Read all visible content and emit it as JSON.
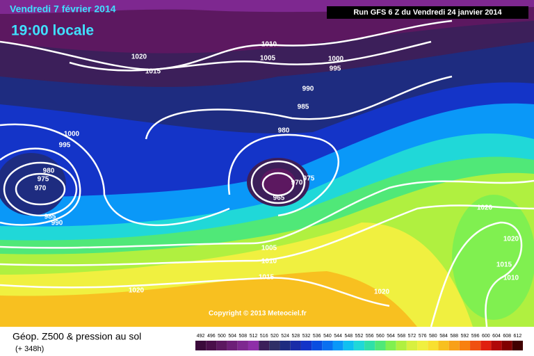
{
  "header": {
    "date": "Vendredi 7 février 2014",
    "time": "19:00 locale",
    "run": "Run GFS 6 Z du Vendredi 24 janvier 2014"
  },
  "isobar_labels": [
    "1020",
    "1015",
    "1010",
    "1005",
    "1000",
    "995",
    "990",
    "985",
    "980",
    "975",
    "970",
    "965",
    "1000",
    "995",
    "980",
    "975",
    "970",
    "985",
    "990",
    "1005",
    "1010",
    "1015",
    "1020",
    "1020",
    "1020",
    "1020",
    "1015",
    "1010"
  ],
  "copyright": "Copyright © 2013 Meteociel.fr",
  "footer": {
    "title": "Géop. Z500 & pression au sol",
    "lead": "(+ 348h)"
  },
  "scale": {
    "values": [
      492,
      496,
      500,
      504,
      508,
      512,
      516,
      520,
      524,
      528,
      532,
      536,
      540,
      544,
      548,
      552,
      556,
      560,
      564,
      568,
      572,
      576,
      580,
      584,
      588,
      592,
      596,
      600,
      604,
      608,
      612
    ],
    "colors": [
      "#3a0a3a",
      "#4a0f4a",
      "#5c1860",
      "#6d1f78",
      "#7e2890",
      "#8e2fa8",
      "#3c1f5a",
      "#2f2f66",
      "#1e2c80",
      "#1a2ca8",
      "#1434c8",
      "#0a4ee0",
      "#0a70f0",
      "#0a98f8",
      "#10c0f0",
      "#20d8d8",
      "#30e0a8",
      "#50e878",
      "#80f050",
      "#b0f040",
      "#d8f040",
      "#f0f040",
      "#f8e030",
      "#f8c020",
      "#f8a018",
      "#f88010",
      "#f05010",
      "#e02010",
      "#b00808",
      "#800000",
      "#400000"
    ]
  }
}
